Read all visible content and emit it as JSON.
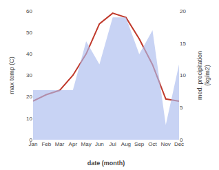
{
  "chart_data": {
    "type": "line",
    "categories": [
      "Jan",
      "Feb",
      "Mar",
      "Apr",
      "May",
      "Jun",
      "Jul",
      "Aug",
      "Sep",
      "Oct",
      "Nov",
      "Dec"
    ],
    "series": [
      {
        "type": "area",
        "axis": "y2",
        "color": "#aabbee",
        "values": [
          7.7,
          7.7,
          7.7,
          7.7,
          15.3,
          11.7,
          19.0,
          19.0,
          13.3,
          17.0,
          2.3,
          11.7
        ]
      },
      {
        "type": "line",
        "color": "#c0392b",
        "values": [
          18,
          21,
          23,
          30,
          40,
          54,
          59,
          57,
          47,
          35,
          19,
          18
        ]
      }
    ],
    "x_label": "date (month)",
    "y_label": "max temp (C)",
    "y2_label": "med. precipitation\n(kg/m2)",
    "ylim": [
      0,
      60
    ],
    "yticks": [
      0,
      10,
      20,
      30,
      40,
      50,
      60
    ],
    "y2lim": [
      0,
      20
    ],
    "y2ticks": [
      0,
      5,
      10,
      15,
      20
    ],
    "grid": false
  }
}
